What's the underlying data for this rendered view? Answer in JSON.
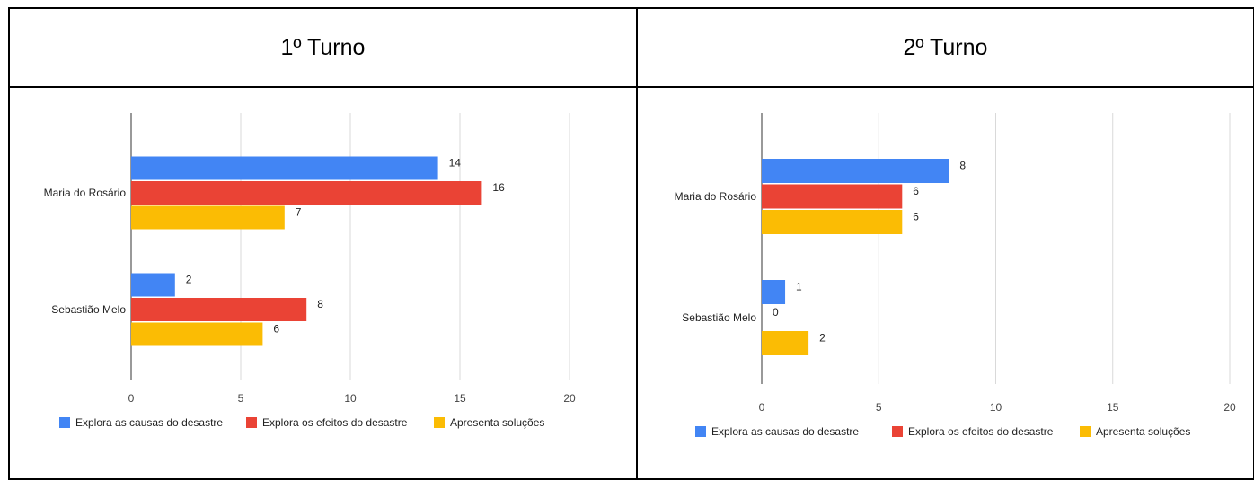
{
  "headers": [
    "1º Turno",
    "2º Turno"
  ],
  "chart_data": [
    {
      "type": "bar",
      "orientation": "horizontal",
      "categories": [
        "Maria do Rosário",
        "Sebastião Melo"
      ],
      "series": [
        {
          "name": "Explora as causas do desastre",
          "color": "#4285F4",
          "values": [
            14,
            2
          ]
        },
        {
          "name": "Explora os efeitos do desastre",
          "color": "#EA4335",
          "values": [
            16,
            8
          ]
        },
        {
          "name": "Apresenta soluções",
          "color": "#FBBC04",
          "values": [
            7,
            6
          ]
        }
      ],
      "xlim": [
        0,
        20
      ],
      "xticks": [
        0,
        5,
        10,
        15,
        20
      ],
      "grid": true,
      "legend": "bottom"
    },
    {
      "type": "bar",
      "orientation": "horizontal",
      "categories": [
        "Maria do Rosário",
        "Sebastião Melo"
      ],
      "series": [
        {
          "name": "Explora as causas do desastre",
          "color": "#4285F4",
          "values": [
            8,
            1
          ]
        },
        {
          "name": "Explora os efeitos do desastre",
          "color": "#EA4335",
          "values": [
            6,
            0
          ]
        },
        {
          "name": "Apresenta soluções",
          "color": "#FBBC04",
          "values": [
            6,
            2
          ]
        }
      ],
      "xlim": [
        0,
        20
      ],
      "xticks": [
        0,
        5,
        10,
        15,
        20
      ],
      "grid": true,
      "legend": "bottom"
    }
  ]
}
